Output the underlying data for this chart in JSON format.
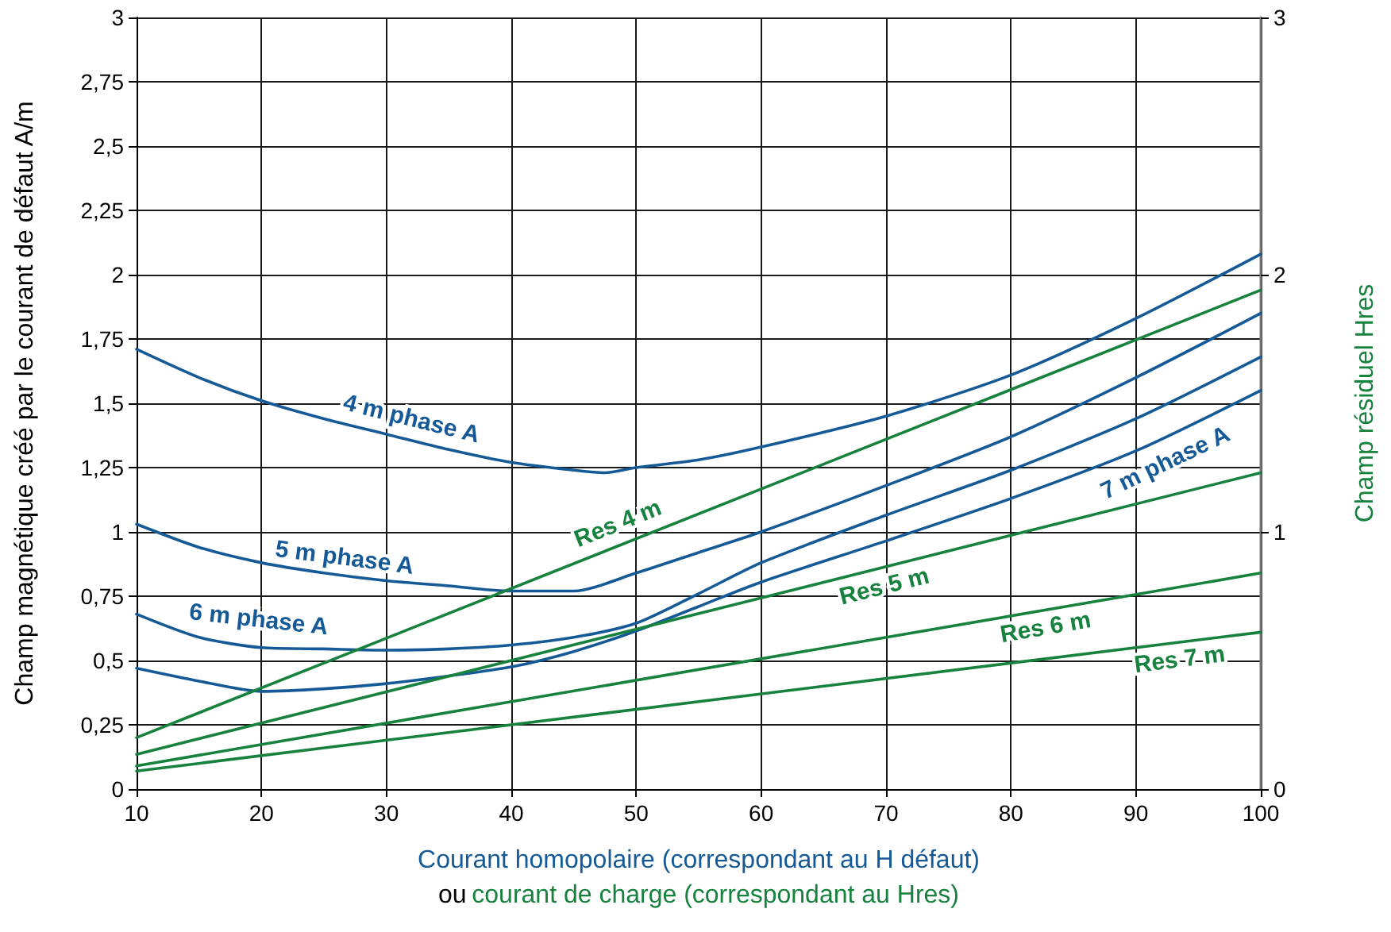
{
  "chart_data": {
    "type": "line",
    "xlabel": "Courant homopolaire (correspondant au H défaut)\nou courant de charge (correspondant au Hres)",
    "ylabel": "Champ magnétique créé par le courant de défaut A/m",
    "y2label": "Champ résiduel Hres",
    "xlim": [
      10,
      100
    ],
    "xticks": [
      10,
      20,
      30,
      40,
      50,
      60,
      70,
      80,
      90,
      100
    ],
    "ylim": [
      0,
      3
    ],
    "yticks": [
      0,
      {
        "value": 0.25,
        "label": "0,25"
      },
      {
        "value": 0.5,
        "label": "0,5"
      },
      {
        "value": 0.75,
        "label": "0,75"
      },
      1,
      {
        "value": 1.25,
        "label": "1,25"
      },
      {
        "value": 1.5,
        "label": "1,5"
      },
      {
        "value": 1.75,
        "label": "1,75"
      },
      2,
      {
        "value": 2.25,
        "label": "2,25"
      },
      {
        "value": 2.5,
        "label": "2,5"
      },
      {
        "value": 2.75,
        "label": "2,75"
      },
      3
    ],
    "y2lim": [
      0,
      3
    ],
    "y2ticks": [
      0,
      1,
      2,
      3
    ],
    "grid": true,
    "marker": "none",
    "line_style": "solid",
    "series": [
      {
        "name": "4 m phase A",
        "color": "#155a96",
        "x": [
          10,
          15,
          20,
          25,
          30,
          35,
          40,
          45,
          47.5,
          50,
          55,
          60,
          70,
          80,
          90,
          100
        ],
        "values": [
          1.71,
          1.6,
          1.51,
          1.44,
          1.38,
          1.32,
          1.27,
          1.24,
          1.23,
          1.25,
          1.28,
          1.33,
          1.45,
          1.61,
          1.83,
          2.08
        ]
      },
      {
        "name": "5 m phase A",
        "color": "#155a96",
        "x": [
          10,
          15,
          20,
          25,
          30,
          35,
          40,
          45,
          50,
          55,
          60,
          70,
          80,
          90,
          100
        ],
        "values": [
          1.03,
          0.94,
          0.88,
          0.84,
          0.81,
          0.79,
          0.77,
          0.77,
          0.84,
          0.92,
          1.0,
          1.18,
          1.37,
          1.6,
          1.85
        ]
      },
      {
        "name": "6 m phase A",
        "color": "#155a96",
        "x": [
          10,
          15,
          20,
          25,
          30,
          35,
          40,
          45,
          50,
          55,
          60,
          70,
          80,
          90,
          100
        ],
        "values": [
          0.68,
          0.59,
          0.55,
          0.545,
          0.54,
          0.545,
          0.56,
          0.59,
          0.645,
          0.76,
          0.88,
          1.065,
          1.24,
          1.44,
          1.68
        ]
      },
      {
        "name": "7 m phase A",
        "color": "#155a96",
        "x": [
          10,
          15,
          20,
          25,
          30,
          35,
          40,
          45,
          50,
          55,
          60,
          70,
          80,
          90,
          100
        ],
        "values": [
          0.47,
          0.42,
          0.38,
          0.39,
          0.41,
          0.44,
          0.475,
          0.535,
          0.615,
          0.71,
          0.805,
          0.965,
          1.13,
          1.315,
          1.55
        ]
      },
      {
        "name": "Res 4 m",
        "color": "#17813e",
        "axis": "y2",
        "x": [
          10,
          100
        ],
        "values": [
          0.2,
          1.94
        ]
      },
      {
        "name": "Res 5 m",
        "color": "#17813e",
        "axis": "y2",
        "x": [
          10,
          100
        ],
        "values": [
          0.135,
          1.23
        ]
      },
      {
        "name": "Res 6 m",
        "color": "#17813e",
        "axis": "y2",
        "x": [
          10,
          100
        ],
        "values": [
          0.09,
          0.84
        ]
      },
      {
        "name": "Res 7 m",
        "color": "#17813e",
        "axis": "y2",
        "x": [
          10,
          100
        ],
        "values": [
          0.07,
          0.61
        ]
      }
    ]
  }
}
